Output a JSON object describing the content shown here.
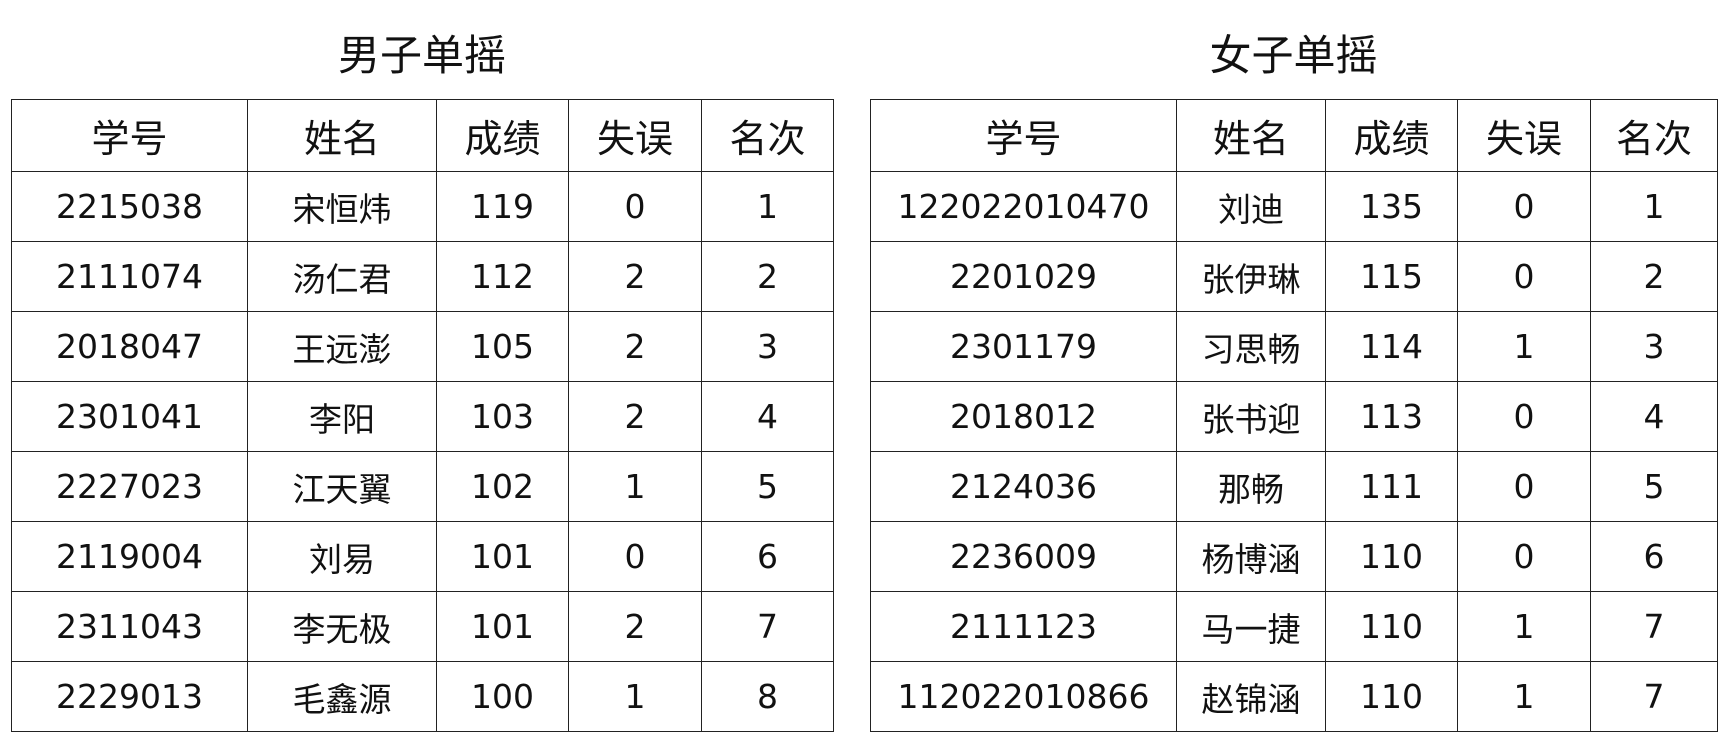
{
  "headers": [
    "学号",
    "姓名",
    "成绩",
    "失误",
    "名次"
  ],
  "tables": [
    {
      "title": "男子单摇",
      "rows": [
        [
          "2215038",
          "宋恒炜",
          "119",
          "0",
          "1"
        ],
        [
          "2111074",
          "汤仁君",
          "112",
          "2",
          "2"
        ],
        [
          "2018047",
          "王远澎",
          "105",
          "2",
          "3"
        ],
        [
          "2301041",
          "李阳",
          "103",
          "2",
          "4"
        ],
        [
          "2227023",
          "江天翼",
          "102",
          "1",
          "5"
        ],
        [
          "2119004",
          "刘易",
          "101",
          "0",
          "6"
        ],
        [
          "2311043",
          "李无极",
          "101",
          "2",
          "7"
        ],
        [
          "2229013",
          "毛鑫源",
          "100",
          "1",
          "8"
        ]
      ]
    },
    {
      "title": "女子单摇",
      "rows": [
        [
          "122022010470",
          "刘迪",
          "135",
          "0",
          "1"
        ],
        [
          "2201029",
          "张伊琳",
          "115",
          "0",
          "2"
        ],
        [
          "2301179",
          "习思畅",
          "114",
          "1",
          "3"
        ],
        [
          "2018012",
          "张书迎",
          "113",
          "0",
          "4"
        ],
        [
          "2124036",
          "那畅",
          "111",
          "0",
          "5"
        ],
        [
          "2236009",
          "杨博涵",
          "110",
          "0",
          "6"
        ],
        [
          "2111123",
          "马一捷",
          "110",
          "1",
          "7"
        ],
        [
          "112022010866",
          "赵锦涵",
          "110",
          "1",
          "7"
        ]
      ]
    }
  ]
}
